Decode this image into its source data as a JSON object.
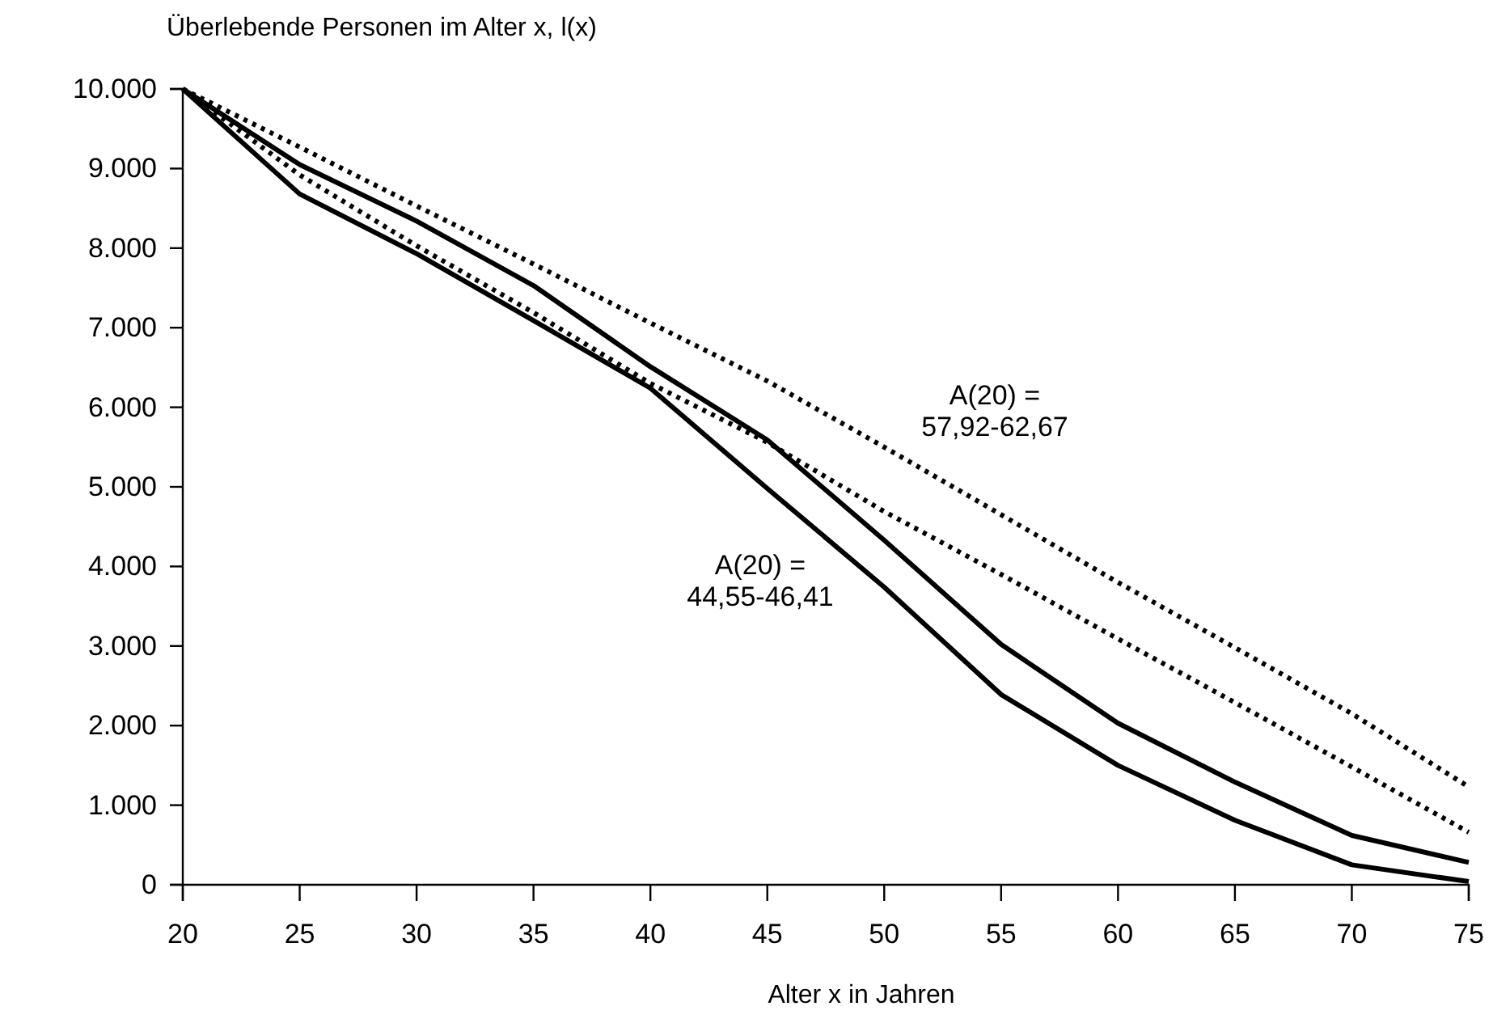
{
  "chart_data": {
    "type": "line",
    "ylabel": "Überlebende Personen im Alter x, l(x)",
    "xlabel": "Alter x in Jahren",
    "x": [
      20,
      25,
      30,
      35,
      40,
      45,
      50,
      55,
      60,
      65,
      70,
      75
    ],
    "xlim": [
      20,
      75
    ],
    "xticks": [
      20,
      25,
      30,
      35,
      40,
      45,
      50,
      55,
      60,
      65,
      70,
      75
    ],
    "ylim": [
      0,
      10000
    ],
    "yticks": [
      {
        "value": 0,
        "label": "0"
      },
      {
        "value": 1000,
        "label": "1.000"
      },
      {
        "value": 2000,
        "label": "2.000"
      },
      {
        "value": 3000,
        "label": "3.000"
      },
      {
        "value": 4000,
        "label": "4.000"
      },
      {
        "value": 5000,
        "label": "5.000"
      },
      {
        "value": 6000,
        "label": "6.000"
      },
      {
        "value": 7000,
        "label": "7.000"
      },
      {
        "value": 8000,
        "label": "8.000"
      },
      {
        "value": 9000,
        "label": "9.000"
      },
      {
        "value": 10000,
        "label": "10.000"
      }
    ],
    "grid": false,
    "marker": "none",
    "series": [
      {
        "color": "#000000",
        "line_style": "solid",
        "values": [
          10000,
          9050,
          8340,
          7530,
          6510,
          5590,
          4330,
          3020,
          2030,
          1290,
          620,
          280
        ]
      },
      {
        "color": "#000000",
        "line_style": "solid",
        "values": [
          10000,
          8680,
          7930,
          7090,
          6240,
          4980,
          3740,
          2390,
          1500,
          810,
          250,
          40
        ]
      },
      {
        "color": "#000000",
        "line_style": "dotted",
        "values": [
          10000,
          9270,
          8530,
          7800,
          7060,
          6330,
          5500,
          4650,
          3800,
          2980,
          2150,
          1230
        ]
      },
      {
        "color": "#000000",
        "line_style": "dotted",
        "values": [
          10000,
          8920,
          8030,
          7190,
          6300,
          5560,
          4690,
          3900,
          3090,
          2290,
          1480,
          660
        ]
      }
    ],
    "annotations": [
      "A(20) =\n57,92-62,67",
      "A(20) =\n44,55-46,41"
    ]
  }
}
